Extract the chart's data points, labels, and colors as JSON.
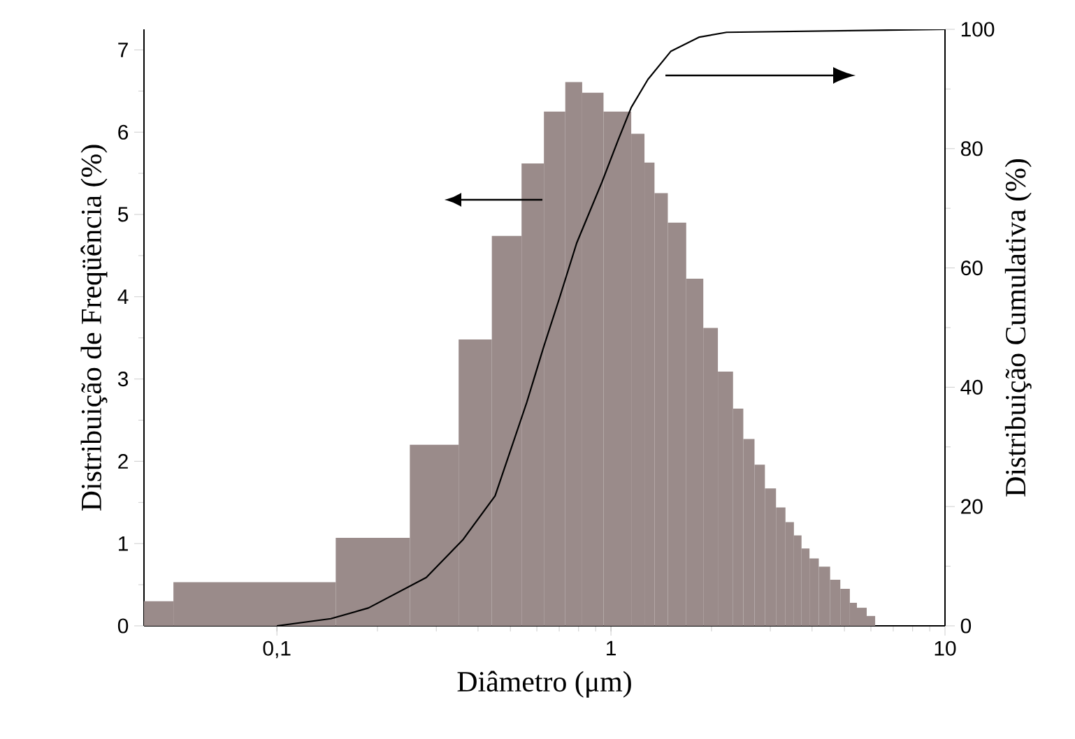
{
  "chart_data": {
    "type": "histogram",
    "xlabel": "Diâmetro (μm)",
    "ylabel": "Distribuição de Freqüência (%)",
    "y2label": "Distribuição Cumulativa (%)",
    "log": "x",
    "xlim": [
      0.04,
      10
    ],
    "xticks": [
      {
        "value": 0.1,
        "label": "0,1"
      },
      1,
      10
    ],
    "ylim": [
      0,
      7.25
    ],
    "yticks": [
      0,
      1,
      2,
      3,
      4,
      5,
      6,
      7
    ],
    "y2lim": [
      0,
      100
    ],
    "y2ticks": [
      0,
      20,
      40,
      60,
      80,
      100
    ],
    "series": [
      {
        "color": "#9a8b8a",
        "bins": [
          0.04,
          0.049,
          0.15,
          0.25,
          0.35,
          0.44,
          0.54,
          0.63,
          0.73,
          0.82,
          0.95,
          1.15,
          1.26,
          1.35,
          1.48,
          1.68,
          1.89,
          2.09,
          2.32,
          2.49,
          2.69,
          2.89,
          3.12,
          3.33,
          3.53,
          3.72,
          3.93,
          4.19,
          4.53,
          4.86,
          5.19,
          5.45,
          5.83,
          6.18
        ],
        "values": [
          0.3,
          0.53,
          1.07,
          2.2,
          3.48,
          4.74,
          5.62,
          6.25,
          6.61,
          6.48,
          6.25,
          5.98,
          5.63,
          5.26,
          4.9,
          4.22,
          3.62,
          3.09,
          2.64,
          2.27,
          1.96,
          1.67,
          1.44,
          1.26,
          1.1,
          0.94,
          0.82,
          0.72,
          0.56,
          0.45,
          0.28,
          0.22,
          0.12
        ]
      },
      {
        "type": "line",
        "axis": "y2",
        "color": "#000000",
        "x": [
          0.1,
          0.145,
          0.188,
          0.28,
          0.36,
          0.45,
          0.56,
          0.63,
          0.7,
          0.79,
          0.94,
          1.05,
          1.15,
          1.29,
          1.51,
          1.84,
          2.22,
          10
        ],
        "values": [
          0,
          1.2,
          3,
          8.1,
          14.4,
          21.8,
          37.5,
          46.9,
          54.8,
          64.2,
          74.4,
          81.4,
          86.9,
          91.6,
          96.3,
          98.7,
          99.5,
          100
        ]
      }
    ]
  }
}
